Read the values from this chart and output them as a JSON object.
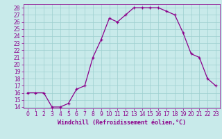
{
  "x": [
    0,
    1,
    2,
    3,
    4,
    5,
    6,
    7,
    8,
    9,
    10,
    11,
    12,
    13,
    14,
    15,
    16,
    17,
    18,
    19,
    20,
    21,
    22,
    23
  ],
  "y": [
    16,
    16,
    16,
    14,
    14,
    14.5,
    16.5,
    17,
    21,
    23.5,
    26.5,
    26,
    27,
    28,
    28,
    28,
    28,
    27.5,
    27,
    24.5,
    21.5,
    21,
    18,
    17
  ],
  "line_color": "#8b008b",
  "marker": "+",
  "marker_color": "#8b008b",
  "bg_color": "#c8eaea",
  "grid_color": "#9dcfcf",
  "xlabel": "Windchill (Refroidissement éolien,°C)",
  "xlabel_color": "#8b008b",
  "tick_color": "#8b008b",
  "spine_color": "#8b008b",
  "xlim": [
    -0.5,
    23.5
  ],
  "ylim": [
    13.8,
    28.5
  ],
  "yticks": [
    14,
    15,
    16,
    17,
    18,
    19,
    20,
    21,
    22,
    23,
    24,
    25,
    26,
    27,
    28
  ],
  "xticks": [
    0,
    1,
    2,
    3,
    4,
    5,
    6,
    7,
    8,
    9,
    10,
    11,
    12,
    13,
    14,
    15,
    16,
    17,
    18,
    19,
    20,
    21,
    22,
    23
  ],
  "font_size": 5.5,
  "label_font_size": 6.0
}
